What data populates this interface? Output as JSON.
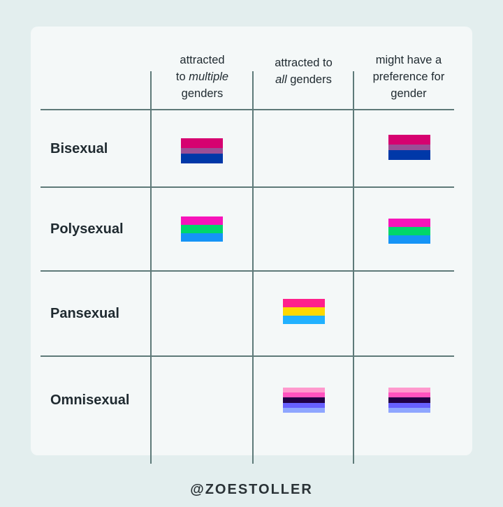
{
  "columns": [
    {
      "pre": "attracted",
      "line2a": "to ",
      "em": "multiple",
      "line2b": "",
      "post": "genders"
    },
    {
      "pre": "attracted to",
      "line2a": "",
      "em": "all",
      "line2b": " genders",
      "post": ""
    },
    {
      "pre": "might have a",
      "line2a": "preference for",
      "em": "",
      "line2b": "",
      "post": "gender"
    }
  ],
  "rows": [
    "Bisexual",
    "Polysexual",
    "Pansexual",
    "Omnisexual"
  ],
  "flags": {
    "bisexual": {
      "stripes": [
        [
          "#d60270",
          2
        ],
        [
          "#9b4f96",
          1
        ],
        [
          "#0038a8",
          2
        ]
      ]
    },
    "polysexual": {
      "stripes": [
        [
          "#f714ba",
          1
        ],
        [
          "#01d66a",
          1
        ],
        [
          "#1594f6",
          1
        ]
      ]
    },
    "pansexual": {
      "stripes": [
        [
          "#ff218c",
          1
        ],
        [
          "#ffd800",
          1
        ],
        [
          "#21b1ff",
          1
        ]
      ]
    },
    "omnisexual": {
      "stripes": [
        [
          "#fe9ace",
          1
        ],
        [
          "#ff53bf",
          1
        ],
        [
          "#200044",
          1
        ],
        [
          "#6760fe",
          1
        ],
        [
          "#8ea6ff",
          1
        ]
      ]
    }
  },
  "credit": "@ZOESTOLLER"
}
